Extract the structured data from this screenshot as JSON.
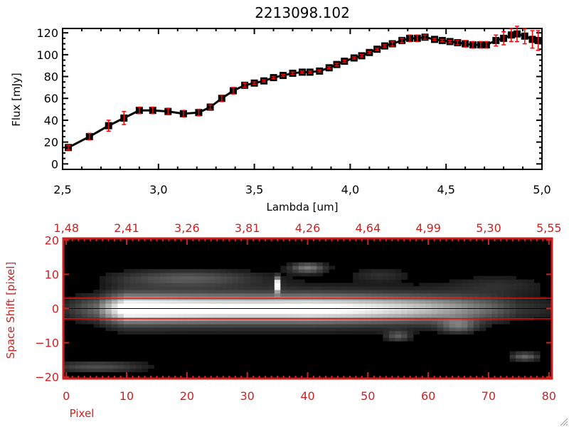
{
  "chart_data": [
    {
      "type": "line",
      "title": "2213098.102",
      "xlabel": "Lambda [um]",
      "ylabel": "Flux [mJy]",
      "xlim": [
        2.5,
        5.0
      ],
      "ylim": [
        -5,
        124
      ],
      "xticks": [
        {
          "v": 2.5,
          "label": "2,5"
        },
        {
          "v": 3.0,
          "label": "3,0"
        },
        {
          "v": 3.5,
          "label": "3,5"
        },
        {
          "v": 4.0,
          "label": "4,0"
        },
        {
          "v": 4.5,
          "label": "4,5"
        },
        {
          "v": 5.0,
          "label": "5,0"
        }
      ],
      "yticks": [
        {
          "v": 0,
          "label": "0"
        },
        {
          "v": 20,
          "label": "20"
        },
        {
          "v": 40,
          "label": "40"
        },
        {
          "v": 60,
          "label": "60"
        },
        {
          "v": 80,
          "label": "80"
        },
        {
          "v": 100,
          "label": "100"
        },
        {
          "v": 120,
          "label": "120"
        }
      ],
      "colors": {
        "line": "#000000",
        "marker": "#000000",
        "errorbar": "#ff0000"
      },
      "x": [
        2.53,
        2.64,
        2.74,
        2.82,
        2.9,
        2.97,
        3.05,
        3.13,
        3.21,
        3.27,
        3.33,
        3.39,
        3.45,
        3.5,
        3.55,
        3.6,
        3.65,
        3.7,
        3.75,
        3.79,
        3.84,
        3.89,
        3.93,
        3.97,
        4.02,
        4.06,
        4.1,
        4.14,
        4.18,
        4.22,
        4.27,
        4.31,
        4.35,
        4.39,
        4.44,
        4.48,
        4.52,
        4.56,
        4.6,
        4.64,
        4.68,
        4.71,
        4.76,
        4.8,
        4.84,
        4.87,
        4.91,
        4.95,
        4.98
      ],
      "y": [
        15,
        25,
        35,
        42,
        49,
        49,
        48,
        46,
        47,
        52,
        60,
        67,
        72,
        74,
        76,
        79,
        81,
        83,
        84,
        84,
        85,
        88,
        91,
        94,
        97,
        99,
        102,
        105,
        108,
        110,
        113,
        115,
        115,
        116,
        114,
        113,
        112,
        111,
        110,
        109,
        109,
        109,
        113,
        115,
        118,
        119,
        117,
        114,
        113
      ],
      "yerr": [
        2,
        3,
        5,
        6,
        3,
        3,
        3,
        3,
        3,
        2,
        3,
        3,
        2,
        1,
        1,
        1,
        1,
        1,
        1,
        1,
        1,
        1,
        1,
        1,
        1,
        1,
        1,
        1,
        1,
        2,
        2,
        3,
        3,
        2,
        1,
        1,
        1,
        2,
        3,
        3,
        3,
        3,
        5,
        6,
        6,
        7,
        7,
        8,
        9
      ]
    },
    {
      "type": "heatmap",
      "xlabel": "Pixel",
      "ylabel": "Space Shift [pixel]",
      "xlim": [
        0,
        80
      ],
      "ylim": [
        -20,
        20
      ],
      "xticks": [
        {
          "v": 0,
          "label": "0"
        },
        {
          "v": 10,
          "label": "10"
        },
        {
          "v": 20,
          "label": "20"
        },
        {
          "v": 30,
          "label": "30"
        },
        {
          "v": 40,
          "label": "40"
        },
        {
          "v": 50,
          "label": "50"
        },
        {
          "v": 60,
          "label": "60"
        },
        {
          "v": 70,
          "label": "70"
        },
        {
          "v": 80,
          "label": "80"
        }
      ],
      "top_xticks": [
        {
          "v": 0,
          "label": "1,48"
        },
        {
          "v": 10,
          "label": "2,41"
        },
        {
          "v": 20,
          "label": "3,26"
        },
        {
          "v": 30,
          "label": "3,81"
        },
        {
          "v": 40,
          "label": "4,26"
        },
        {
          "v": 50,
          "label": "4,64"
        },
        {
          "v": 60,
          "label": "4,99"
        },
        {
          "v": 70,
          "label": "5,30"
        },
        {
          "v": 80,
          "label": "5,55"
        }
      ],
      "yticks": [
        {
          "v": -20,
          "label": "−20"
        },
        {
          "v": -10,
          "label": "−10"
        },
        {
          "v": 0,
          "label": "0"
        },
        {
          "v": 10,
          "label": "10"
        },
        {
          "v": 20,
          "label": "20"
        }
      ],
      "aperture": [
        -3,
        3
      ],
      "trace_center": 0,
      "trace_profile_step": 5,
      "trace_profile": [
        0.15,
        0.35,
        1.0,
        0.97,
        0.93,
        0.9,
        0.88,
        0.88,
        0.9,
        0.86,
        0.8,
        0.72,
        0.62,
        0.5,
        0.35,
        0.18,
        0.12
      ],
      "trace_width": 3.6,
      "halo_width": 8,
      "halo_amp": 0.22,
      "blobs": [
        {
          "x": 35,
          "y": 7,
          "amp": 1.0,
          "sx": 0.5,
          "sy": 2
        },
        {
          "x": 40,
          "y": 12,
          "amp": 0.45,
          "sx": 3,
          "sy": 1.5
        },
        {
          "x": 5,
          "y": -17,
          "amp": 0.3,
          "sx": 9,
          "sy": 1.8
        },
        {
          "x": 76,
          "y": -14,
          "amp": 0.4,
          "sx": 2.5,
          "sy": 1.3
        },
        {
          "x": 20,
          "y": 9,
          "amp": 0.3,
          "sx": 12,
          "sy": 2.5
        },
        {
          "x": 65,
          "y": -5,
          "amp": 0.35,
          "sx": 3,
          "sy": 2
        },
        {
          "x": 55,
          "y": -8,
          "amp": 0.3,
          "sx": 2,
          "sy": 1.5
        },
        {
          "x": 72,
          "y": 7,
          "amp": 0.15,
          "sx": 9,
          "sy": 3
        },
        {
          "x": 52,
          "y": 10,
          "amp": 0.15,
          "sx": 5,
          "sy": 2
        }
      ],
      "colors": {
        "axis": "#cc2222",
        "aperture": "#ff0000",
        "center": "#000000"
      }
    }
  ]
}
